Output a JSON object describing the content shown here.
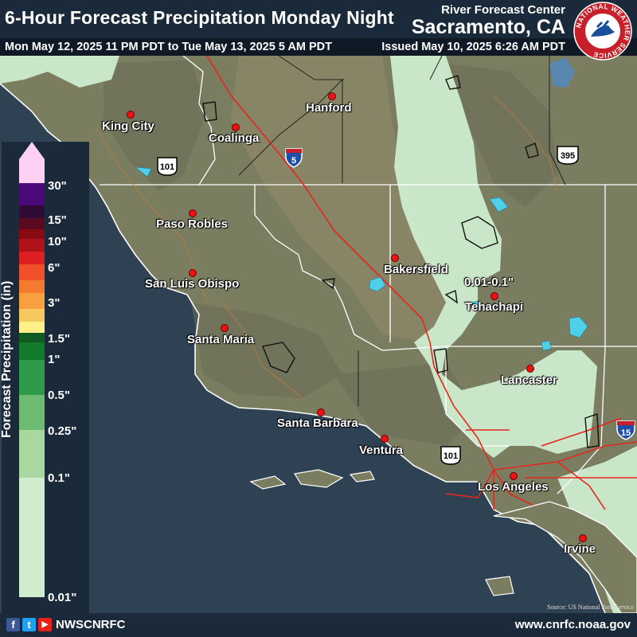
{
  "header": {
    "title": "6-Hour Forecast Precipitation Monday Night",
    "rfc_line1": "River Forecast Center",
    "rfc_line2": "Sacramento, CA",
    "valid_period": "Mon May 12, 2025 11 PM PDT to Tue May 13, 2025 5 AM PDT",
    "issued": "Issued May 10, 2025 6:26 AM PDT"
  },
  "logo": {
    "text": "NATIONAL WEATHER SERVICE"
  },
  "legend": {
    "axis_label": "Forecast Precipitation (in)",
    "ticks": [
      "30\"",
      "15\"",
      "10\"",
      "6\"",
      "3\"",
      "1.5\"",
      "1\"",
      "0.5\"",
      "0.25\"",
      "0.1\"",
      "0.01\""
    ]
  },
  "cities": [
    "King City",
    "Coalinga",
    "Hanford",
    "Paso Robles",
    "San Luis Obispo",
    "Santa Maria",
    "Bakersfield",
    "Tehachapi",
    "Lancaster",
    "Santa Barbara",
    "Ventura",
    "Los Angeles",
    "Irvine"
  ],
  "highways": {
    "i5": "5",
    "us101a": "101",
    "us395": "395",
    "us101b": "101",
    "i15": "15"
  },
  "annotation": "0.01-0.1\"",
  "source": "Source: US National Park Service",
  "footer": {
    "handle": "NWSCNRFC",
    "website": "www.cnrfc.noaa.gov",
    "social": [
      "f",
      "t",
      "▶"
    ]
  },
  "colors": {
    "precip_light": "#cfeccf",
    "ocean": "#2f4254",
    "land": "#7d8062",
    "roads": "#e8251c",
    "header": "#1b2a3a"
  }
}
